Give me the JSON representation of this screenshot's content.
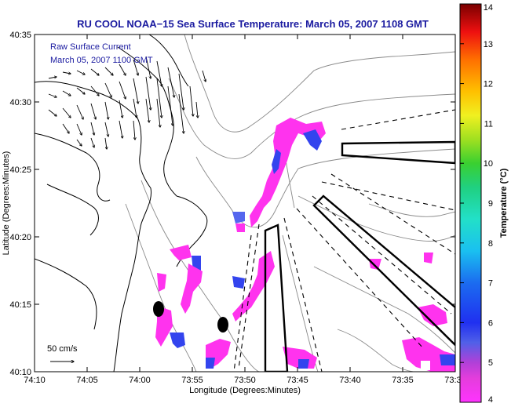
{
  "map": {
    "title": "RU COOL  NOAA−15  Sea Surface Temperature:  March 05, 2007 1108 GMT",
    "xlabel": "Longitude (Degrees:Minutes)",
    "ylabel": "Latitude (Degrees:Minutes)",
    "x_ticks": [
      "74:10",
      "74:05",
      "74:00",
      "73:55",
      "73:50",
      "73:45",
      "73:40",
      "73:35",
      "73:30"
    ],
    "y_ticks": [
      "40:35",
      "40:30",
      "40:25",
      "40:20",
      "40:15",
      "40:10"
    ],
    "legend_line1": "Raw Surface Current",
    "legend_line2": "March 05, 2007 1100 GMT",
    "scale_label": "50 cm/s",
    "colors": {
      "title": "#1a1aa0",
      "sst_patch": "#ff33ee",
      "sst_cold": "#3344ee",
      "coast": "#000000",
      "bathymetry": "#8a8a8a"
    }
  },
  "colorbar": {
    "label": "Temperature (°C)",
    "ticks": [
      "14",
      "13",
      "12",
      "11",
      "10",
      "9",
      "8",
      "7",
      "6",
      "5",
      "4"
    ],
    "min": 4,
    "max": 14
  }
}
